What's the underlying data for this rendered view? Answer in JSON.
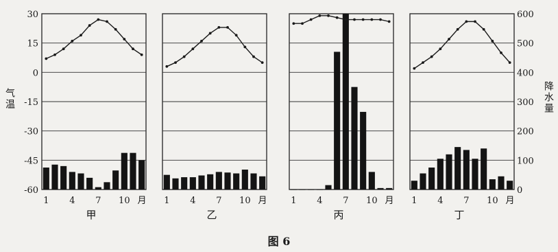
{
  "figure": {
    "caption": "图 6"
  },
  "axes": {
    "left_label": "气温",
    "right_label": "降水量",
    "temp_ticks": [
      "30",
      "15",
      "0",
      "-15",
      "-30",
      "-45",
      "-60"
    ],
    "precip_ticks": [
      "600",
      "500",
      "400",
      "300",
      "200",
      "100",
      "0"
    ],
    "month_ticks": [
      "1",
      "4",
      "7",
      "10",
      "月"
    ]
  },
  "chart_data": [
    {
      "type": "bar",
      "title": "甲",
      "categories": [
        1,
        2,
        3,
        4,
        5,
        6,
        7,
        8,
        9,
        10,
        11,
        12
      ],
      "xlabel": "月",
      "ylabel": "气温",
      "y2label": "降水量",
      "ylim": [
        -60,
        30
      ],
      "y2lim": [
        0,
        600
      ],
      "temperature": [
        7,
        9,
        12,
        16,
        19,
        24,
        27,
        26,
        22,
        17,
        12,
        9
      ],
      "precipitation": [
        75,
        85,
        80,
        60,
        55,
        40,
        8,
        25,
        65,
        125,
        125,
        100
      ]
    },
    {
      "type": "bar",
      "title": "乙",
      "categories": [
        1,
        2,
        3,
        4,
        5,
        6,
        7,
        8,
        9,
        10,
        11,
        12
      ],
      "xlabel": "月",
      "ylabel": "气温",
      "y2label": "降水量",
      "ylim": [
        -60,
        30
      ],
      "y2lim": [
        0,
        600
      ],
      "temperature": [
        3,
        5,
        8,
        12,
        16,
        20,
        23,
        23,
        19,
        13,
        8,
        5
      ],
      "precip": [
        50,
        38,
        42,
        42,
        48,
        52,
        60,
        58,
        55,
        68,
        55,
        45
      ]
    },
    {
      "type": "bar",
      "title": "丙",
      "categories": [
        1,
        2,
        3,
        4,
        5,
        6,
        7,
        8,
        9,
        10,
        11,
        12
      ],
      "xlabel": "月",
      "ylabel": "气温",
      "y2label": "降水量",
      "ylim": [
        -60,
        30
      ],
      "y2lim": [
        0,
        600
      ],
      "temperature": [
        25,
        25,
        27,
        29,
        29,
        28,
        27,
        27,
        27,
        27,
        27,
        26
      ],
      "precipitation": [
        0,
        0,
        0,
        0,
        15,
        470,
        615,
        350,
        265,
        60,
        5,
        5
      ]
    },
    {
      "type": "bar",
      "title": "丁",
      "categories": [
        1,
        2,
        3,
        4,
        5,
        6,
        7,
        8,
        9,
        10,
        11,
        12
      ],
      "xlabel": "月",
      "ylabel": "气温",
      "y2label": "降水量",
      "ylim": [
        -60,
        30
      ],
      "y2lim": [
        0,
        600
      ],
      "temperature": [
        2,
        5,
        8,
        12,
        17,
        22,
        26,
        26,
        22,
        16,
        10,
        5
      ],
      "precipitation": [
        30,
        55,
        75,
        105,
        120,
        145,
        135,
        105,
        140,
        35,
        45,
        30
      ]
    }
  ]
}
